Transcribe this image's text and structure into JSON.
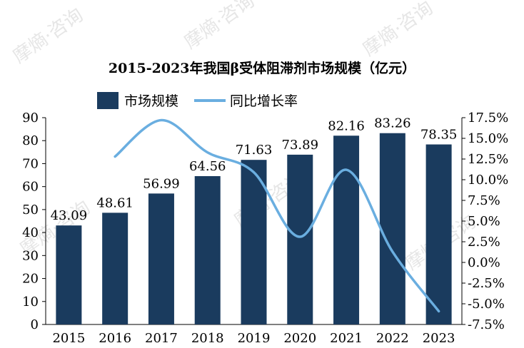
{
  "watermark": {
    "text": "摩熵·咨询"
  },
  "chart_data": {
    "type": "bar+line",
    "title": "2015-2023年我国β受体阻滞剂市场规模（亿元）",
    "categories": [
      "2015",
      "2016",
      "2017",
      "2018",
      "2019",
      "2020",
      "2021",
      "2022",
      "2023"
    ],
    "series": [
      {
        "name": "市场规模",
        "type": "bar",
        "axis": "left",
        "color": "#1a3b5e",
        "values": [
          43.09,
          48.61,
          56.99,
          64.56,
          71.63,
          73.89,
          82.16,
          83.26,
          78.35
        ],
        "labels": [
          "43.09",
          "48.61",
          "56.99",
          "64.56",
          "71.63",
          "73.89",
          "82.16",
          "83.26",
          "78.35"
        ]
      },
      {
        "name": "同比增长率",
        "type": "line",
        "axis": "right",
        "color": "#6aaee0",
        "x": [
          "2016",
          "2017",
          "2018",
          "2019",
          "2020",
          "2021",
          "2022",
          "2023"
        ],
        "values": [
          12.8,
          17.2,
          13.3,
          10.9,
          3.1,
          11.2,
          1.3,
          -5.9
        ]
      }
    ],
    "y_left": {
      "min": 0,
      "max": 90,
      "ticks": [
        "0",
        "10",
        "20",
        "30",
        "40",
        "50",
        "60",
        "70",
        "80",
        "90"
      ]
    },
    "y_right": {
      "min": -7.5,
      "max": 17.5,
      "ticks": [
        "-7.5%",
        "-5.0%",
        "-2.5%",
        "0.0%",
        "2.5%",
        "5.0%",
        "7.5%",
        "10.0%",
        "12.5%",
        "15.0%",
        "17.5%"
      ]
    },
    "legend": {
      "position": "top-left"
    },
    "grid": false
  }
}
